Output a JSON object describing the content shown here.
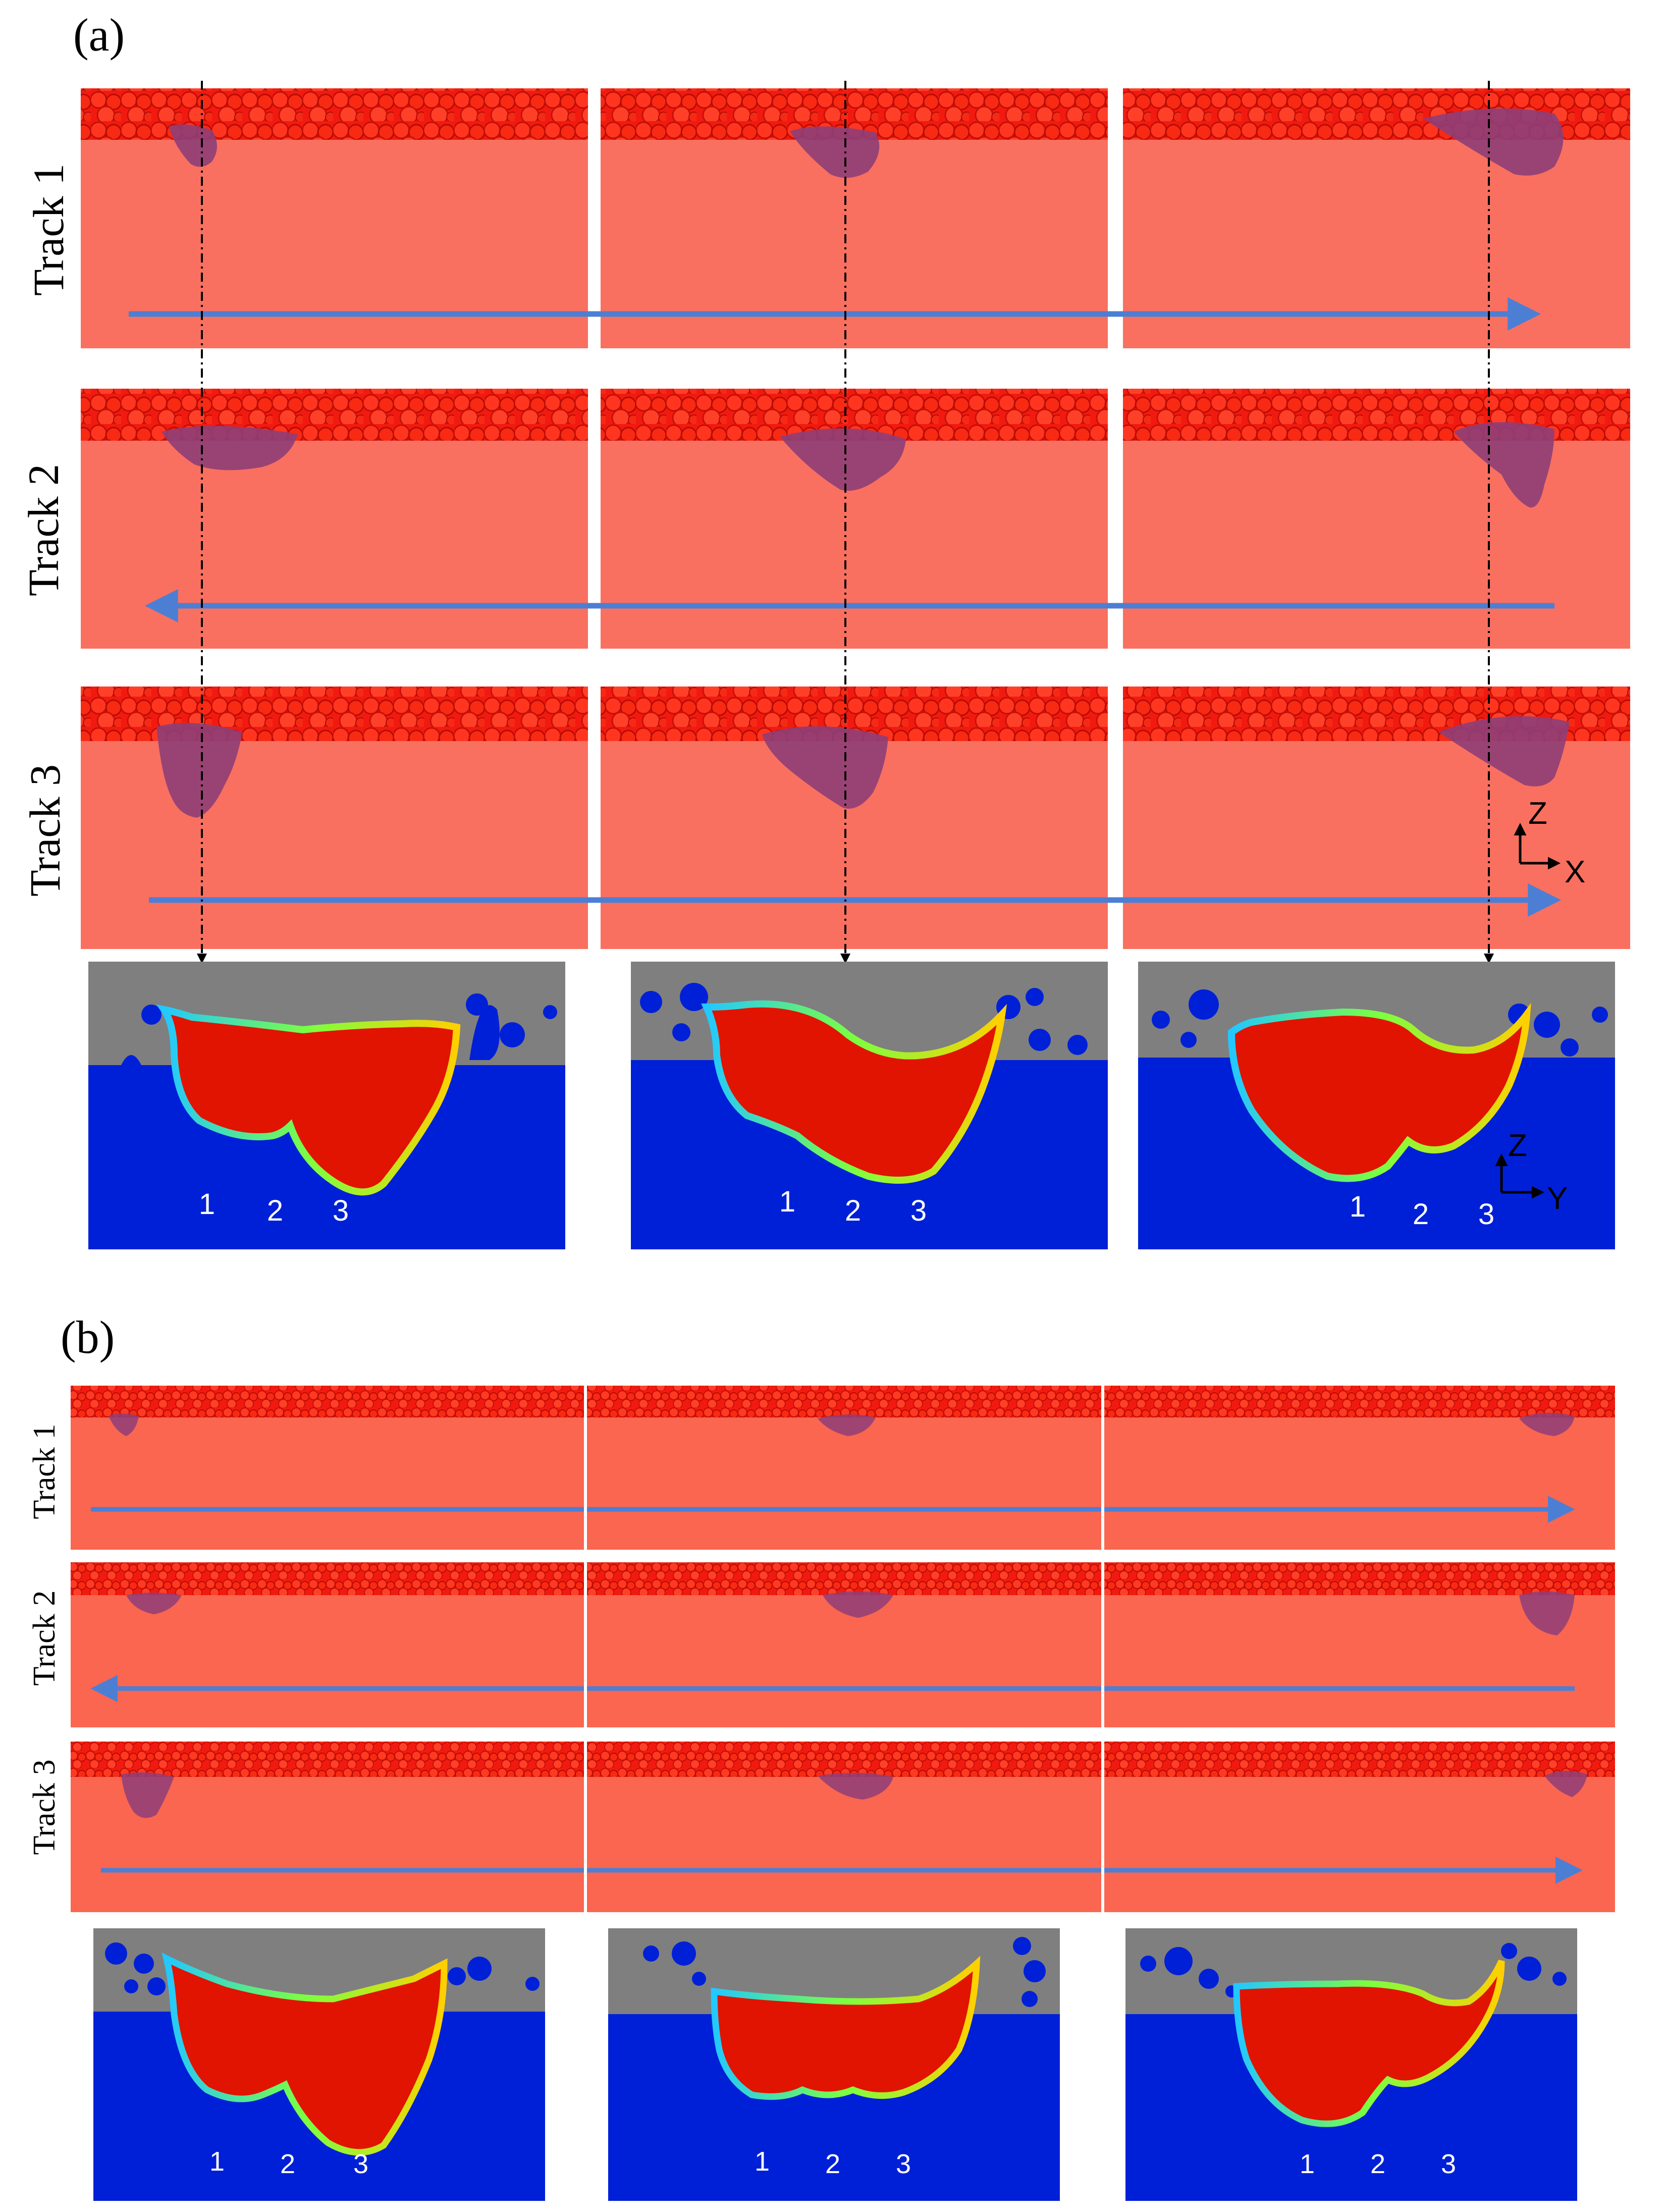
{
  "figure": {
    "panel_a_label": "(a)",
    "panel_b_label": "(b)",
    "track_labels": [
      "Track 1",
      "Track 2",
      "Track 3"
    ],
    "axes_top": {
      "vertical": "Z",
      "horizontal": "X"
    },
    "axes_cross": {
      "vertical": "Z",
      "horizontal": "Y"
    },
    "track_numbers": [
      "1",
      "2",
      "3"
    ],
    "colors": {
      "substrate": "#f97060",
      "substrate_b": "#fa6650",
      "powder": "#f21a10",
      "melt_pool": "#8e3e78",
      "section_solid": "#0020d8",
      "section_gas": "#7f7f7f",
      "section_melt": "#e01400",
      "arrow": "#4c7fd4"
    },
    "scan_directions": {
      "a": [
        "right",
        "left",
        "right"
      ],
      "b": [
        "right",
        "left",
        "right"
      ]
    }
  }
}
